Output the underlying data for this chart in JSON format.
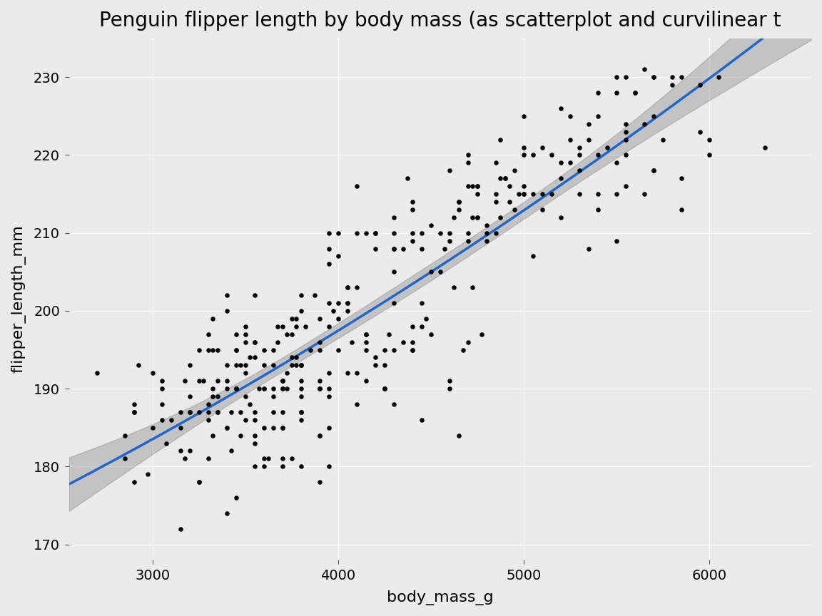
{
  "title": "Penguin flipper length by body mass (as scatterplot and curvilinear t",
  "xlabel": "body_mass_g",
  "ylabel": "flipper_length_mm",
  "scatter_color": "#000000",
  "line_color": "#2266CC",
  "ci_color": "#888888",
  "bg_color": "#EBEBEB",
  "grid_color": "#FFFFFF",
  "xlim": [
    2550,
    6550
  ],
  "ylim": [
    168,
    235
  ],
  "xticks": [
    3000,
    4000,
    5000,
    6000
  ],
  "yticks": [
    170,
    180,
    190,
    200,
    210,
    220,
    230
  ],
  "title_fontsize": 20,
  "label_fontsize": 16,
  "tick_fontsize": 14,
  "point_size": 22
}
